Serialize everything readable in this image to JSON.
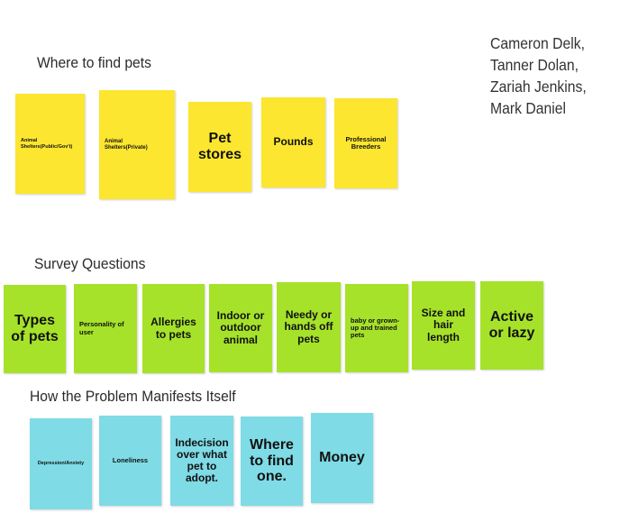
{
  "headings": {
    "where_to_find": "Where to find pets",
    "survey": "Survey Questions",
    "manifest": "How the Problem Manifests Itself"
  },
  "authors": [
    "Cameron Delk,",
    "Tanner Dolan,",
    "Zariah Jenkins,",
    "Mark Daniel"
  ],
  "colors": {
    "yellow": "#fce62f",
    "green": "#a6e22a",
    "blue": "#7fdbe6"
  },
  "notes": {
    "find": [
      "Animal Shelters(Public/Gov't)",
      "Animal Shelters(Private)",
      "Pet stores",
      "Pounds",
      "Professional Breeders"
    ],
    "survey": [
      "Types of pets",
      "Personality of user",
      "Allergies to pets",
      "Indoor or outdoor animal",
      "Needy or hands off pets",
      "baby or grown-up and trained pets",
      "Size and hair length",
      "Active or lazy"
    ],
    "manifest": [
      "Depression/Anxiety",
      "Loneliness",
      "Indecision over what pet to adopt.",
      "Where to find one.",
      "Money"
    ]
  }
}
